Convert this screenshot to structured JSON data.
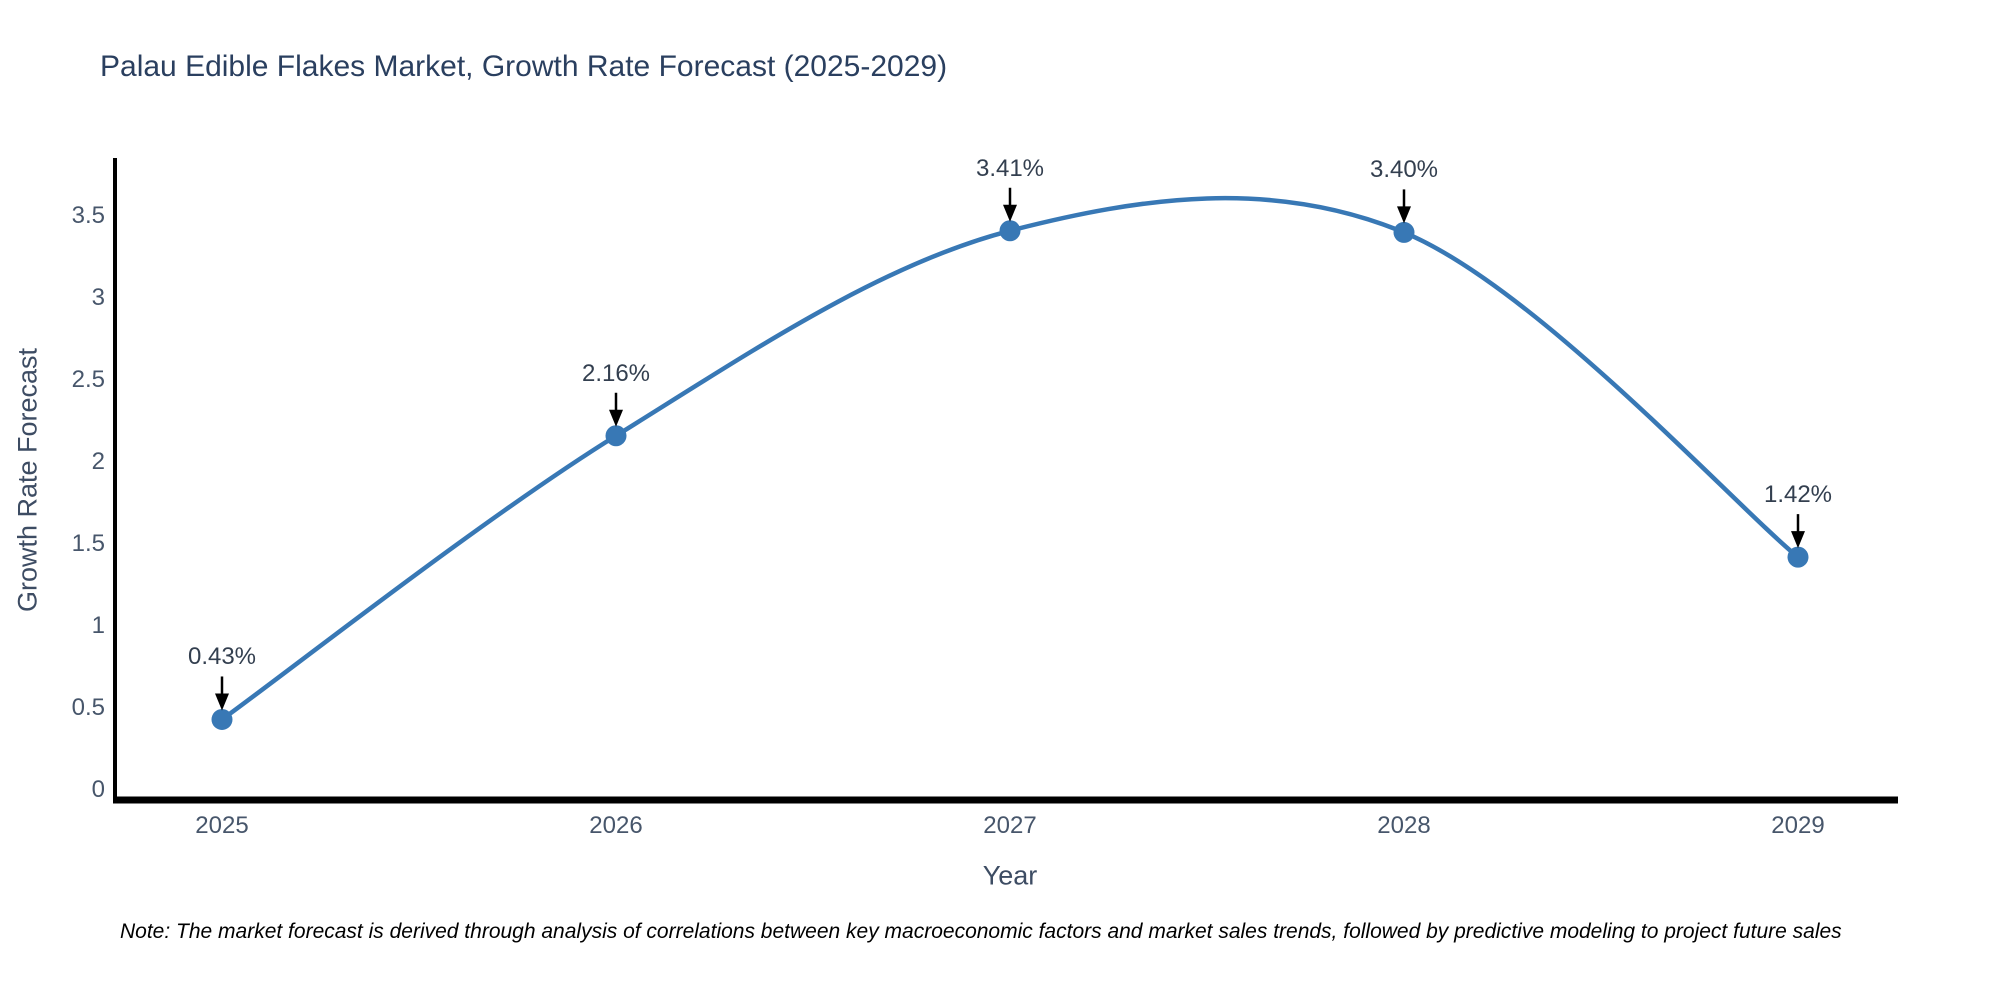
{
  "title": "Palau Edible Flakes Market, Growth Rate Forecast (2025-2029)",
  "chart_data": {
    "type": "line",
    "title": "Palau Edible Flakes Market, Growth Rate Forecast (2025-2029)",
    "categories": [
      "2025",
      "2026",
      "2027",
      "2028",
      "2029"
    ],
    "series": [
      {
        "name": "Growth Rate Forecast",
        "values": [
          0.43,
          2.16,
          3.41,
          3.4,
          1.42
        ]
      }
    ],
    "point_labels": [
      "0.43%",
      "2.16%",
      "3.41%",
      "3.40%",
      "1.42%"
    ],
    "xlabel": "Year",
    "ylabel": "Growth Rate Forecast",
    "yticks": [
      "0",
      "0.5",
      "1",
      "1.5",
      "2",
      "2.5",
      "3",
      "3.5"
    ],
    "ytick_values": [
      0,
      0.5,
      1,
      1.5,
      2,
      2.5,
      3,
      3.5
    ],
    "ylim": [
      0,
      3.9
    ],
    "grid": false,
    "legend_position": "none",
    "smooth": true,
    "annotations_have_arrows": true
  },
  "note": "Note: The market forecast is derived through analysis of correlations between key macroeconomic factors and market sales trends, followed by predictive modeling to project future sales",
  "colors": {
    "line": "#3878b5",
    "marker": "#3878b5",
    "title_text": "#2a3f5f",
    "axis_tick_text": "#47566b",
    "axis_title_text": "#3d4c63",
    "annotation_text": "#333f4f",
    "annotation_arrow": "#000000",
    "axis_line": "#000000",
    "background": "#ffffff"
  }
}
